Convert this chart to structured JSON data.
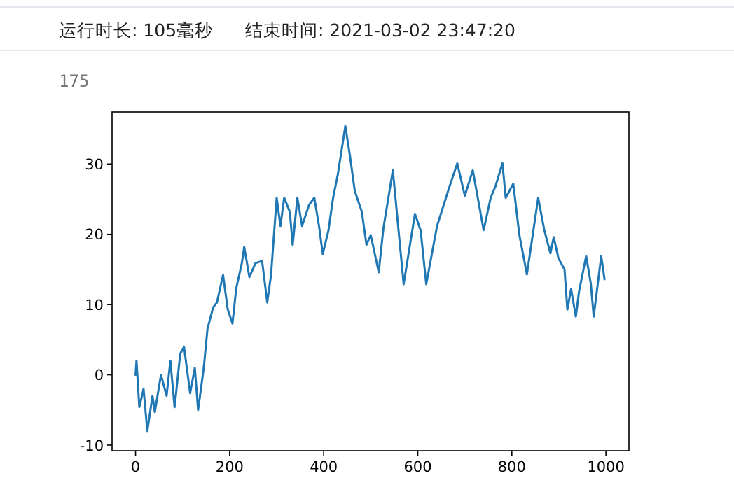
{
  "chart_data": {
    "type": "line",
    "annotations": [
      "运行时长: 105毫秒",
      "结束时间: 2021-03-02 23:47:20",
      "175"
    ],
    "xlim": [
      -49.95,
      1048.95
    ],
    "ylim": [
      -10.8,
      37.4
    ],
    "xticks": [
      0,
      200,
      400,
      600,
      800,
      1000
    ],
    "yticks": [
      -10,
      0,
      10,
      20,
      30
    ],
    "series": [
      {
        "color": "#1f77b4",
        "x": [
          0,
          2,
          8,
          17,
          25,
          36,
          41,
          54,
          66,
          74,
          83,
          95,
          103,
          116,
          126,
          133,
          145,
          153,
          165,
          173,
          186,
          196,
          206,
          214,
          226,
          231,
          242,
          255,
          269,
          280,
          288,
          300,
          308,
          316,
          328,
          334,
          344,
          354,
          369,
          380,
          390,
          398,
          410,
          420,
          430,
          446,
          456,
          466,
          481,
          491,
          500,
          517,
          527,
          547,
          570,
          594,
          606,
          618,
          641,
          666,
          684,
          700,
          717,
          740,
          755,
          765,
          780,
          787,
          803,
          816,
          832,
          856,
          869,
          882,
          889,
          899,
          912,
          918,
          926,
          936,
          943,
          958,
          968,
          974,
          990,
          997
        ],
        "values": [
          0,
          2,
          -4.6,
          -2,
          -8,
          -3,
          -5.3,
          0,
          -3,
          2,
          -4.6,
          3,
          4,
          -2.6,
          1,
          -5,
          1,
          6.6,
          9.6,
          10.3,
          14.2,
          9.3,
          7.3,
          12.3,
          15.9,
          18.2,
          13.9,
          15.9,
          16.2,
          10.3,
          14.2,
          25.2,
          21.2,
          25.2,
          23.2,
          18.5,
          25.2,
          21.2,
          24.2,
          25.2,
          21.2,
          17.2,
          20.5,
          25.2,
          28.5,
          35.4,
          31.1,
          26.2,
          23.2,
          18.5,
          19.9,
          14.6,
          20.9,
          29.1,
          12.9,
          22.9,
          20.6,
          12.9,
          21.2,
          26.5,
          30.1,
          25.5,
          29.1,
          20.6,
          25.2,
          26.8,
          30.1,
          25.2,
          27.2,
          19.9,
          14.3,
          25.2,
          20.6,
          17.3,
          19.6,
          16.6,
          15.0,
          9.3,
          12.2,
          8.3,
          11.9,
          16.9,
          12.9,
          8.3,
          16.9,
          13.6
        ]
      }
    ]
  }
}
